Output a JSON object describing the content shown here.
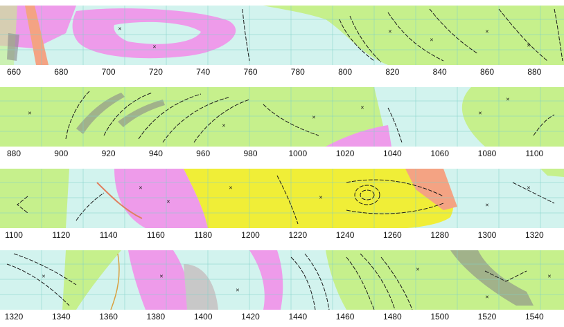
{
  "colors": {
    "green": "#c6f08c",
    "cyan": "#d2f3ee",
    "pink": "#ee9bea",
    "yellow": "#f0ee37",
    "salmon": "#f4a383",
    "gray": "#c8c8c8",
    "grid": "#7fd0c8",
    "ink": "#1a1a1a"
  },
  "strips": [
    {
      "ticks": [
        "660",
        "680",
        "700",
        "720",
        "740",
        "760",
        "780",
        "800",
        "820",
        "840",
        "860",
        "880"
      ]
    },
    {
      "ticks": [
        "880",
        "900",
        "920",
        "940",
        "960",
        "980",
        "1000",
        "1020",
        "1040",
        "1060",
        "1080",
        "1100"
      ]
    },
    {
      "ticks": [
        "1100",
        "1120",
        "1140",
        "1160",
        "1180",
        "1200",
        "1220",
        "1240",
        "1260",
        "1280",
        "1300",
        "1320"
      ]
    },
    {
      "ticks": [
        "1320",
        "1340",
        "1360",
        "1380",
        "1400",
        "1420",
        "1440",
        "1460",
        "1480",
        "1500",
        "1520",
        "1540"
      ]
    }
  ]
}
